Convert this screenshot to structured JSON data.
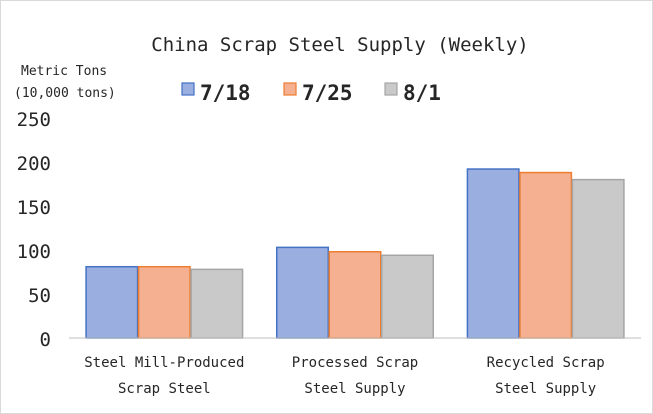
{
  "chart_data": {
    "type": "bar",
    "title": "China Scrap Steel Supply (Weekly)",
    "ylabel": [
      "Metric Tons",
      "(10,000 tons)"
    ],
    "categories": [
      [
        "Steel Mill-Produced",
        "Scrap Steel"
      ],
      [
        "Processed Scrap",
        "Steel Supply"
      ],
      [
        "Recycled Scrap",
        "Steel Supply"
      ]
    ],
    "series": [
      {
        "name": "7/18",
        "values": [
          81,
          103,
          192
        ]
      },
      {
        "name": "7/25",
        "values": [
          81,
          98,
          188
        ]
      },
      {
        "name": "8/1",
        "values": [
          78,
          94,
          180
        ]
      }
    ],
    "ylim": [
      0,
      250
    ],
    "yticks": [
      0,
      50,
      100,
      150,
      200,
      250
    ],
    "grid": false,
    "legend_position": "top",
    "colors": {
      "7/18": {
        "fill": "#9aaee0",
        "stroke": "#4472c4"
      },
      "7/25": {
        "fill": "#f4b090",
        "stroke": "#ed7d31"
      },
      "8/1": {
        "fill": "#c9c9c9",
        "stroke": "#a5a5a5"
      },
      "axis": "#bfbfbf"
    }
  }
}
